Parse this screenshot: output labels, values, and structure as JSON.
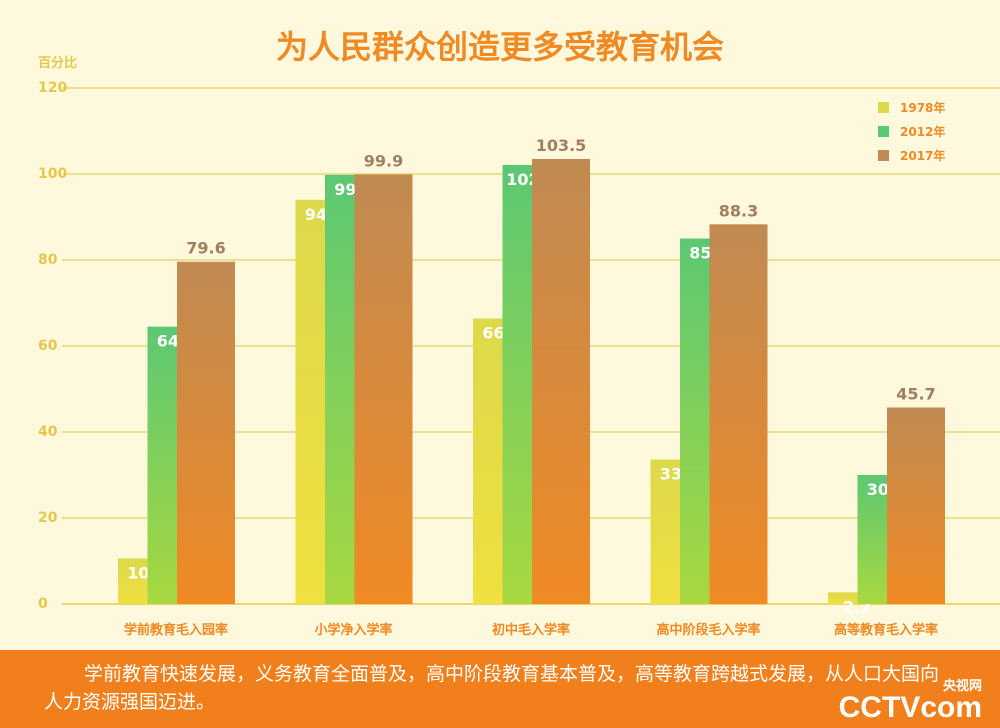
{
  "chart_data": {
    "type": "bar",
    "title": "为人民群众创造更多受教育机会",
    "ylabel": "百分比",
    "ylim": [
      0,
      120
    ],
    "yticks": [
      0,
      20,
      40,
      60,
      80,
      100,
      120
    ],
    "categories": [
      "学前教育毛入园率",
      "小学净入学率",
      "初中毛入学率",
      "高中阶段毛入学率",
      "高等教育毛入学率"
    ],
    "series": [
      {
        "name": "1978年",
        "values": [
          10.6,
          94.0,
          66.4,
          33.6,
          2.7
        ],
        "color": "#dcd94a"
      },
      {
        "name": "2012年",
        "values": [
          64.5,
          99.8,
          102.1,
          85.0,
          30.0
        ],
        "color": "#5cc873"
      },
      {
        "name": "2017年",
        "values": [
          79.6,
          99.9,
          103.5,
          88.3,
          45.7
        ],
        "color": "#c08a52"
      }
    ],
    "legend": "top-right",
    "grid": true
  },
  "footer": {
    "text": "学前教育快速发展，义务教育全面普及，高中阶段教育基本普及，高等教育跨越式发展，从人口大国向人力资源强国迈进。",
    "logo": "CCTV",
    "logo_sub": "央视网",
    "logo_suffix": "com"
  }
}
